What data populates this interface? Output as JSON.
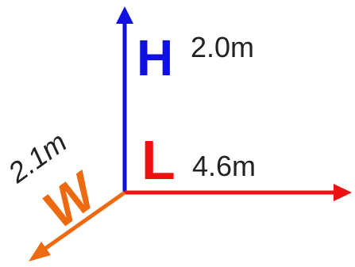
{
  "diagram": {
    "height": {
      "letter": "H",
      "value": "2.0m",
      "color": "#1010e0"
    },
    "length": {
      "letter": "L",
      "value": "4.6m",
      "color": "#ee1111"
    },
    "width": {
      "letter": "W",
      "value": "2.1m",
      "color": "#ee6a10"
    }
  }
}
